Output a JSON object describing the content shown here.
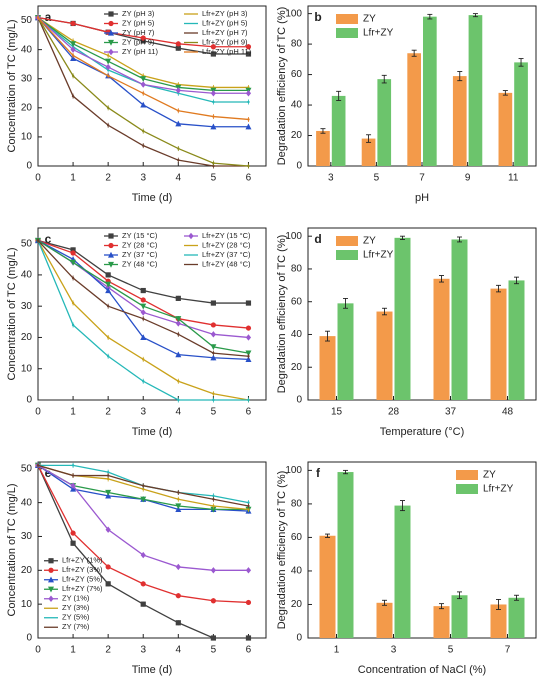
{
  "chart_data": [
    {
      "panel": "a",
      "type": "line",
      "xlabel": "Time (d)",
      "ylabel": "Concentration of TC (mg/L)",
      "xlim": [
        0,
        6.5
      ],
      "ylim": [
        0,
        55
      ],
      "xticks": [
        0,
        1,
        2,
        3,
        4,
        5,
        6
      ],
      "yticks": [
        0,
        10,
        20,
        30,
        40,
        50
      ],
      "legend_position": "top-right",
      "legend_cols": 2,
      "x": [
        0,
        1,
        2,
        3,
        4,
        5,
        6
      ],
      "series": [
        {
          "name": "ZY (pH 3)",
          "color": "#404040",
          "marker": "square",
          "values": [
            51,
            49,
            46,
            43,
            40.5,
            38.5,
            38.5
          ]
        },
        {
          "name": "Lfr+ZY (pH 3)",
          "color": "#c9a21a",
          "marker": "none",
          "values": [
            51,
            43,
            38,
            31,
            28,
            27,
            27
          ]
        },
        {
          "name": "ZY (pH 5)",
          "color": "#e03030",
          "marker": "circle",
          "values": [
            51,
            49,
            46,
            44,
            42,
            41,
            41
          ]
        },
        {
          "name": "Lfr+ZY (pH 5)",
          "color": "#25b8b8",
          "marker": "none",
          "values": [
            51,
            41,
            33,
            28,
            25,
            22,
            22
          ]
        },
        {
          "name": "ZY (pH 7)",
          "color": "#2850c8",
          "marker": "triangle",
          "values": [
            51,
            37,
            31,
            21,
            14.5,
            13.5,
            13.5
          ]
        },
        {
          "name": "Lfr+ZY (pH 7)",
          "color": "#6a3c2a",
          "marker": "none",
          "values": [
            51,
            24,
            14,
            7,
            2,
            0,
            0
          ]
        },
        {
          "name": "ZY (pH 9)",
          "color": "#2a9a4a",
          "marker": "triangle-down",
          "values": [
            51,
            42,
            36,
            30,
            27,
            26,
            26
          ]
        },
        {
          "name": "Lfr+ZY (pH 9)",
          "color": "#8a8a1a",
          "marker": "none",
          "values": [
            51,
            31,
            20,
            12,
            6,
            1,
            0
          ]
        },
        {
          "name": "ZY (pH 11)",
          "color": "#9b59d0",
          "marker": "diamond",
          "values": [
            51,
            40,
            34,
            28,
            26,
            25,
            25
          ]
        },
        {
          "name": "Lfr+ZY (pH 11)",
          "color": "#e07a20",
          "marker": "none",
          "values": [
            51,
            38,
            31,
            25,
            19,
            17,
            16
          ]
        }
      ]
    },
    {
      "panel": "b",
      "type": "bar",
      "xlabel": "pH",
      "ylabel": "Degradation efficiency of TC (%)",
      "ylim": [
        0,
        105
      ],
      "yticks": [
        0,
        20,
        40,
        60,
        80,
        100
      ],
      "legend_position": "top-left",
      "categories": [
        "3",
        "5",
        "7",
        "9",
        "11"
      ],
      "series": [
        {
          "name": "ZY",
          "color": "#f39a4a",
          "values": [
            23,
            18,
            74,
            59,
            48
          ],
          "errors": [
            1.5,
            2.5,
            2,
            3,
            1.5
          ]
        },
        {
          "name": "Lfr+ZY",
          "color": "#6cc46c",
          "values": [
            46,
            57,
            98,
            99,
            68
          ],
          "errors": [
            3,
            2.5,
            1.5,
            1,
            2.5
          ]
        }
      ]
    },
    {
      "panel": "c",
      "type": "line",
      "xlabel": "Time (d)",
      "ylabel": "Concentration of TC (mg/L)",
      "xlim": [
        0,
        6.5
      ],
      "ylim": [
        0,
        55
      ],
      "xticks": [
        0,
        1,
        2,
        3,
        4,
        5,
        6
      ],
      "yticks": [
        0,
        10,
        20,
        30,
        40,
        50
      ],
      "legend_position": "top-right",
      "legend_cols": 2,
      "x": [
        0,
        1,
        2,
        3,
        4,
        5,
        6
      ],
      "series": [
        {
          "name": "ZY (15 °C)",
          "color": "#404040",
          "marker": "square",
          "values": [
            51,
            48,
            40,
            35,
            32.5,
            31,
            31
          ]
        },
        {
          "name": "Lfr+ZY (15 °C)",
          "color": "#9b59d0",
          "marker": "diamond",
          "values": [
            51,
            44,
            36,
            28,
            24.5,
            21,
            20
          ]
        },
        {
          "name": "ZY (28 °C)",
          "color": "#e03030",
          "marker": "circle",
          "values": [
            51,
            47,
            38,
            32,
            26,
            24,
            23
          ]
        },
        {
          "name": "Lfr+ZY (28 °C)",
          "color": "#c9a21a",
          "marker": "none",
          "values": [
            51,
            31,
            20,
            13,
            6,
            2,
            0
          ]
        },
        {
          "name": "ZY (37 °C)",
          "color": "#2850c8",
          "marker": "triangle",
          "values": [
            51,
            45,
            35,
            20,
            14.5,
            13.5,
            13
          ]
        },
        {
          "name": "Lfr+ZY (37 °C)",
          "color": "#25b8b8",
          "marker": "none",
          "values": [
            51,
            24,
            14,
            6,
            0,
            0,
            0
          ]
        },
        {
          "name": "ZY (48 °C)",
          "color": "#2a9a4a",
          "marker": "triangle-down",
          "values": [
            51,
            44,
            37,
            30,
            26,
            17,
            15
          ]
        },
        {
          "name": "Lfr+ZY (48 °C)",
          "color": "#6a3c2a",
          "marker": "none",
          "values": [
            51,
            39,
            30,
            26,
            21,
            15,
            14
          ]
        }
      ]
    },
    {
      "panel": "d",
      "type": "bar",
      "xlabel": "Temperature (°C)",
      "ylabel": "Degradation efficiency of TC (%)",
      "ylim": [
        0,
        105
      ],
      "yticks": [
        0,
        20,
        40,
        60,
        80,
        100
      ],
      "legend_position": "top-left",
      "categories": [
        "15",
        "28",
        "37",
        "48"
      ],
      "series": [
        {
          "name": "ZY",
          "color": "#f39a4a",
          "values": [
            39,
            54,
            74,
            68
          ],
          "errors": [
            3,
            2,
            2,
            2
          ]
        },
        {
          "name": "Lfr+ZY",
          "color": "#6cc46c",
          "values": [
            59,
            99,
            98,
            73
          ],
          "errors": [
            3,
            1,
            1.5,
            2
          ]
        }
      ]
    },
    {
      "panel": "e",
      "type": "line",
      "xlabel": "Time (d)",
      "ylabel": "Concentration of TC (mg/L)",
      "xlim": [
        0,
        6.5
      ],
      "ylim": [
        0,
        52
      ],
      "xticks": [
        0,
        1,
        2,
        3,
        4,
        5,
        6
      ],
      "yticks": [
        0,
        10,
        20,
        30,
        40,
        50
      ],
      "legend_position": "bottom-left",
      "legend_cols": 1,
      "x": [
        0,
        1,
        2,
        3,
        4,
        5,
        6
      ],
      "series": [
        {
          "name": "Lfr+ZY (1%)",
          "color": "#404040",
          "marker": "square",
          "values": [
            51,
            28,
            16,
            10,
            4.5,
            0,
            0
          ]
        },
        {
          "name": "Lfr+ZY (3%)",
          "color": "#e03030",
          "marker": "circle",
          "values": [
            51,
            31,
            21,
            16,
            12.5,
            11,
            10.5
          ]
        },
        {
          "name": "Lfr+ZY (5%)",
          "color": "#2850c8",
          "marker": "triangle",
          "values": [
            51,
            44,
            42,
            41,
            38,
            38,
            37.5
          ]
        },
        {
          "name": "Lfr+ZY (7%)",
          "color": "#2a9a4a",
          "marker": "triangle-down",
          "values": [
            51,
            45,
            43,
            41,
            39,
            38,
            38
          ]
        },
        {
          "name": "ZY (1%)",
          "color": "#9b59d0",
          "marker": "diamond",
          "values": [
            51,
            45,
            32,
            24.5,
            21,
            20,
            20
          ]
        },
        {
          "name": "ZY (3%)",
          "color": "#c9a21a",
          "marker": "none",
          "values": [
            51,
            48,
            47,
            44,
            41,
            39,
            38
          ]
        },
        {
          "name": "ZY (5%)",
          "color": "#25b8b8",
          "marker": "none",
          "values": [
            51,
            51,
            49,
            45,
            43,
            42,
            40
          ]
        },
        {
          "name": "ZY (7%)",
          "color": "#6a3c2a",
          "marker": "none",
          "values": [
            51,
            48,
            48,
            45,
            43,
            41,
            39
          ]
        }
      ]
    },
    {
      "panel": "f",
      "type": "bar",
      "xlabel": "Concentration of NaCl (%)",
      "ylabel": "Degradation efficiency of TC (%)",
      "ylim": [
        0,
        105
      ],
      "yticks": [
        0,
        20,
        40,
        60,
        80,
        100
      ],
      "legend_position": "top-right",
      "categories": [
        "1",
        "3",
        "5",
        "7"
      ],
      "series": [
        {
          "name": "ZY",
          "color": "#f39a4a",
          "values": [
            61,
            21,
            19,
            20
          ],
          "errors": [
            1,
            1.5,
            1.5,
            3
          ]
        },
        {
          "name": "Lfr+ZY",
          "color": "#6cc46c",
          "values": [
            99,
            79,
            25.5,
            24
          ],
          "errors": [
            1,
            3,
            2,
            1.5
          ]
        }
      ]
    }
  ]
}
